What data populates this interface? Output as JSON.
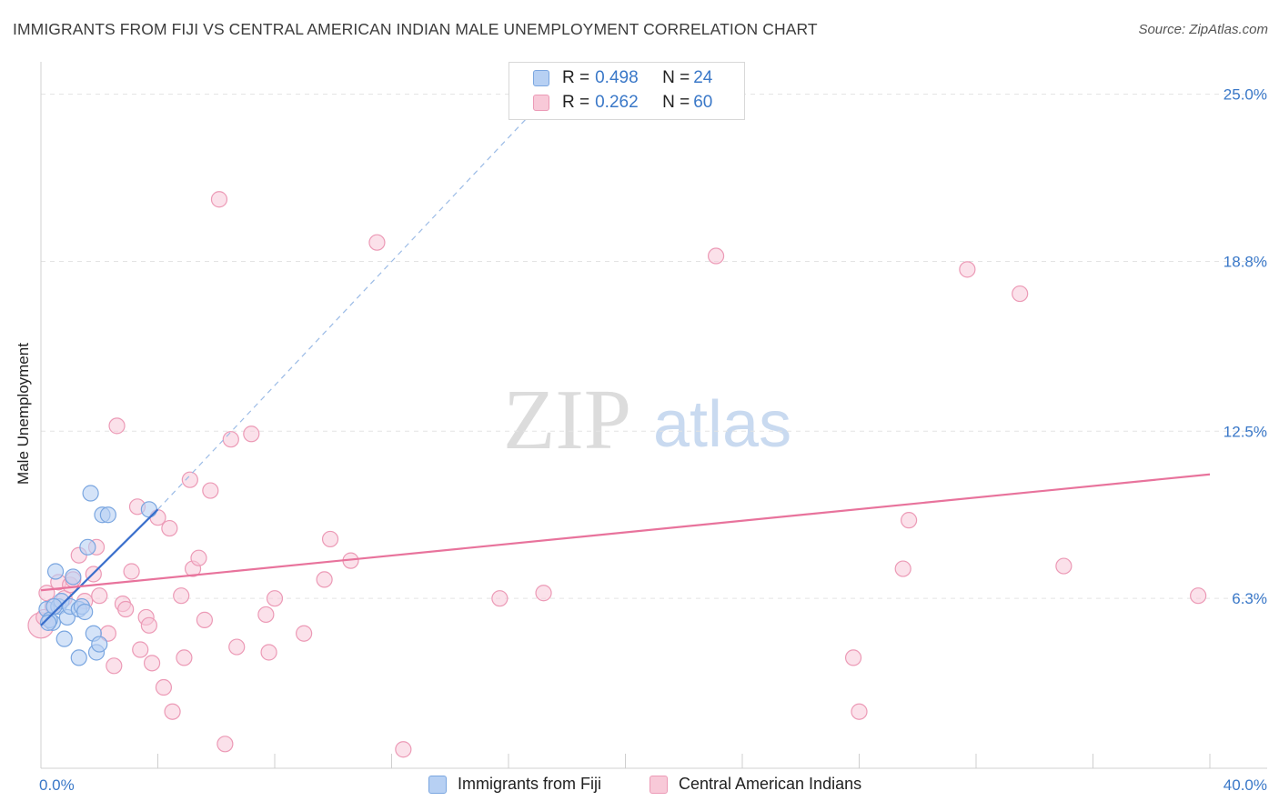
{
  "title": "IMMIGRANTS FROM FIJI VS CENTRAL AMERICAN INDIAN MALE UNEMPLOYMENT CORRELATION CHART",
  "source": "Source: ZipAtlas.com",
  "watermark": {
    "zip": "ZIP",
    "atlas": "atlas"
  },
  "colors": {
    "fiji_fill": "#b7d0f3",
    "fiji_stroke": "#7aa6e0",
    "fiji_line": "#3a6fcc",
    "cai_fill": "#f8c9d8",
    "cai_stroke": "#ec9ab6",
    "cai_line": "#e8739c",
    "axis_label": "#3a78c8",
    "grid": "#e3e3e3"
  },
  "legend": {
    "rows": [
      {
        "r_label": "R = ",
        "r_value": "0.498",
        "n_label": "N = ",
        "n_value": "24"
      },
      {
        "r_label": "R = ",
        "r_value": "0.262",
        "n_label": "N = ",
        "n_value": "60"
      }
    ]
  },
  "bottom_legend": [
    "Immigrants from Fiji",
    "Central American Indians"
  ],
  "chart_data": {
    "type": "scatter",
    "title": "IMMIGRANTS FROM FIJI VS CENTRAL AMERICAN INDIAN MALE UNEMPLOYMENT CORRELATION CHART",
    "xlabel": "",
    "ylabel": "Male Unemployment",
    "xlim": [
      0,
      40
    ],
    "ylim": [
      0,
      26.2
    ],
    "x_tick_labels": [
      "0.0%",
      "40.0%"
    ],
    "y_ticks": [
      6.3,
      12.5,
      18.8,
      25.0
    ],
    "y_tick_labels": [
      "6.3%",
      "12.5%",
      "18.8%",
      "25.0%"
    ],
    "grid": true,
    "series": [
      {
        "name": "Immigrants from Fiji",
        "R": 0.498,
        "N": 24,
        "trend": {
          "x": [
            0.0,
            4.0
          ],
          "y": [
            5.3,
            9.6
          ]
        },
        "trend_extended": {
          "x": [
            4.0,
            17.4
          ],
          "y": [
            9.6,
            25.0
          ]
        },
        "points": [
          [
            0.2,
            5.9
          ],
          [
            0.4,
            5.4
          ],
          [
            0.3,
            5.5
          ],
          [
            0.6,
            6.0
          ],
          [
            0.5,
            7.3
          ],
          [
            0.7,
            6.2
          ],
          [
            0.9,
            5.6
          ],
          [
            1.0,
            6.0
          ],
          [
            1.1,
            7.1
          ],
          [
            1.3,
            5.9
          ],
          [
            1.4,
            6.0
          ],
          [
            1.5,
            5.8
          ],
          [
            1.6,
            8.2
          ],
          [
            1.7,
            10.2
          ],
          [
            1.8,
            5.0
          ],
          [
            0.8,
            4.8
          ],
          [
            1.3,
            4.1
          ],
          [
            1.9,
            4.3
          ],
          [
            2.0,
            4.6
          ],
          [
            2.1,
            9.4
          ],
          [
            2.3,
            9.4
          ],
          [
            3.7,
            9.6
          ],
          [
            0.25,
            5.4
          ],
          [
            0.45,
            6.0
          ]
        ]
      },
      {
        "name": "Central American Indians",
        "R": 0.262,
        "N": 60,
        "trend": {
          "x": [
            0.0,
            40.0
          ],
          "y": [
            6.6,
            10.9
          ]
        },
        "points": [
          [
            0.0,
            5.3
          ],
          [
            0.2,
            6.5
          ],
          [
            0.4,
            6.0
          ],
          [
            0.6,
            6.9
          ],
          [
            0.8,
            6.3
          ],
          [
            1.0,
            6.8
          ],
          [
            1.1,
            7.0
          ],
          [
            1.3,
            7.9
          ],
          [
            1.5,
            6.2
          ],
          [
            1.8,
            7.2
          ],
          [
            1.9,
            8.2
          ],
          [
            2.0,
            6.4
          ],
          [
            2.3,
            5.0
          ],
          [
            2.5,
            3.8
          ],
          [
            2.6,
            12.7
          ],
          [
            2.8,
            6.1
          ],
          [
            2.9,
            5.9
          ],
          [
            3.1,
            7.3
          ],
          [
            3.3,
            9.7
          ],
          [
            3.4,
            4.4
          ],
          [
            3.6,
            5.6
          ],
          [
            3.7,
            5.3
          ],
          [
            3.8,
            3.9
          ],
          [
            4.0,
            9.3
          ],
          [
            4.2,
            3.0
          ],
          [
            4.4,
            8.9
          ],
          [
            4.5,
            2.1
          ],
          [
            4.8,
            6.4
          ],
          [
            4.9,
            4.1
          ],
          [
            5.1,
            10.7
          ],
          [
            5.2,
            7.4
          ],
          [
            5.4,
            7.8
          ],
          [
            5.6,
            5.5
          ],
          [
            5.8,
            10.3
          ],
          [
            6.3,
            0.9
          ],
          [
            6.5,
            12.2
          ],
          [
            6.7,
            4.5
          ],
          [
            7.2,
            12.4
          ],
          [
            7.7,
            5.7
          ],
          [
            8.0,
            6.3
          ],
          [
            7.8,
            4.3
          ],
          [
            9.0,
            5.0
          ],
          [
            9.7,
            7.0
          ],
          [
            9.9,
            8.5
          ],
          [
            10.6,
            7.7
          ],
          [
            11.5,
            19.5
          ],
          [
            12.4,
            0.7
          ],
          [
            15.7,
            6.3
          ],
          [
            17.2,
            6.5
          ],
          [
            23.1,
            19.0
          ],
          [
            27.8,
            4.1
          ],
          [
            28.0,
            2.1
          ],
          [
            29.5,
            7.4
          ],
          [
            29.7,
            9.2
          ],
          [
            31.7,
            18.5
          ],
          [
            33.5,
            17.6
          ],
          [
            35.0,
            7.5
          ],
          [
            39.6,
            6.4
          ],
          [
            6.1,
            21.1
          ],
          [
            0.1,
            5.6
          ]
        ]
      }
    ]
  }
}
